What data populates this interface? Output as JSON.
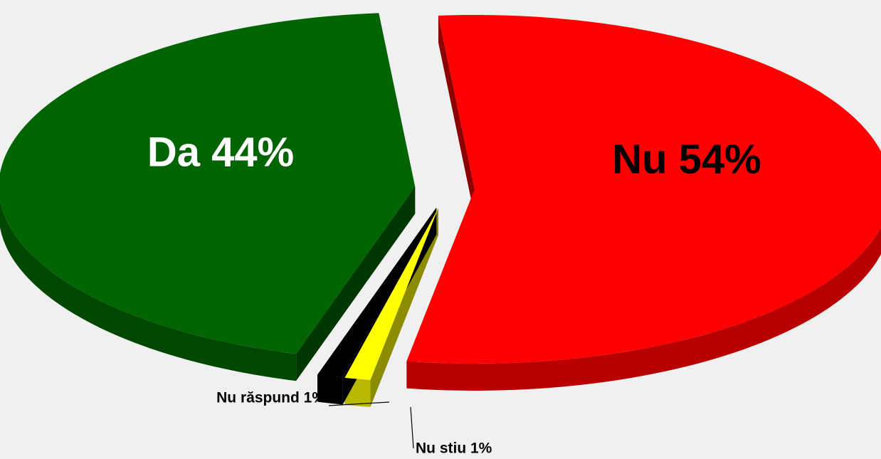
{
  "chart_data": {
    "type": "pie",
    "values": [
      54,
      1,
      1,
      44
    ],
    "value_labels": [
      "Nu 54%",
      "Nu stiu 1%",
      "Nu răspund 1%",
      "Da 44%"
    ],
    "colors": [
      "#ff0000",
      "#ffff00",
      "#000000",
      "#006400"
    ]
  }
}
